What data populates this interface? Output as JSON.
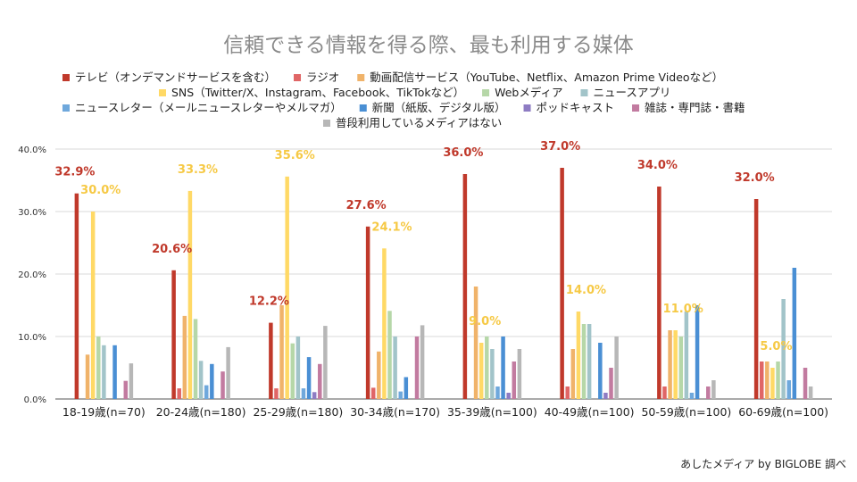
{
  "chart_data": {
    "type": "bar",
    "title": "信頼できる情報を得る際、最も利用する媒体",
    "source": "あしたメディア by BIGLOBE 調べ",
    "categories": [
      "18-19歳(n=70)",
      "20-24歳(n=180)",
      "25-29歳(n=180)",
      "30-34歳(n=170)",
      "35-39歳(n=100)",
      "40-49歳(n=100)",
      "50-59歳(n=100)",
      "60-69歳(n=100)"
    ],
    "ylim": [
      0,
      40
    ],
    "yticks": [
      "0.0%",
      "10.0%",
      "20.0%",
      "30.0%",
      "40.0%"
    ],
    "grid": true,
    "legend_position": "top",
    "series": [
      {
        "name": "テレビ（オンデマンドサービスを含む）",
        "color": "#c0392b",
        "values": [
          32.9,
          20.6,
          12.2,
          27.6,
          36.0,
          37.0,
          34.0,
          32.0
        ]
      },
      {
        "name": "ラジオ",
        "color": "#e06666",
        "values": [
          0,
          1.7,
          1.7,
          1.8,
          0,
          2.0,
          2.0,
          6.0
        ]
      },
      {
        "name": "動画配信サービス（YouTube、Netflix、Amazon Prime Videoなど）",
        "color": "#f0b36a",
        "values": [
          7.1,
          13.3,
          15.0,
          7.6,
          18.0,
          8.0,
          11.0,
          6.0
        ]
      },
      {
        "name": "SNS（Twitter/X、Instagram、Facebook、TikTokなど）",
        "color": "#ffd966",
        "values": [
          30.0,
          33.3,
          35.6,
          24.1,
          9.0,
          14.0,
          11.0,
          5.0
        ]
      },
      {
        "name": "Webメディア",
        "color": "#b6d7a8",
        "values": [
          10.0,
          12.8,
          8.9,
          14.1,
          10.0,
          12.0,
          10.0,
          6.0
        ]
      },
      {
        "name": "ニュースアプリ",
        "color": "#a2c4c9",
        "values": [
          8.6,
          6.1,
          10.0,
          10.0,
          8.0,
          12.0,
          14.0,
          16.0
        ]
      },
      {
        "name": "ニュースレター（メールニュースレターやメルマガ）",
        "color": "#6fa8dc",
        "values": [
          0,
          2.2,
          1.7,
          1.2,
          2.0,
          0,
          1.0,
          3.0
        ]
      },
      {
        "name": "新聞（紙版、デジタル版）",
        "color": "#4a8fd4",
        "values": [
          8.6,
          5.6,
          6.7,
          3.5,
          10.0,
          9.0,
          15.0,
          21.0
        ]
      },
      {
        "name": "ポッドキャスト",
        "color": "#8e7cc3",
        "values": [
          0,
          0,
          1.1,
          0,
          1.0,
          1.0,
          0,
          0
        ]
      },
      {
        "name": "雑誌・専門誌・書籍",
        "color": "#c27ba0",
        "values": [
          2.9,
          4.4,
          5.6,
          10.0,
          6.0,
          5.0,
          2.0,
          5.0
        ]
      },
      {
        "name": "普段利用しているメディアはない",
        "color": "#b7b7b7",
        "values": [
          5.7,
          8.3,
          11.7,
          11.8,
          8.0,
          10.0,
          3.0,
          2.0
        ]
      }
    ],
    "data_labels": [
      {
        "series": 0,
        "category": 0,
        "text": "32.9%",
        "color": "#c0392b"
      },
      {
        "series": 3,
        "category": 0,
        "text": "30.0%",
        "color": "#f6c945"
      },
      {
        "series": 0,
        "category": 1,
        "text": "20.6%",
        "color": "#c0392b"
      },
      {
        "series": 3,
        "category": 1,
        "text": "33.3%",
        "color": "#f6c945"
      },
      {
        "series": 0,
        "category": 2,
        "text": "12.2%",
        "color": "#c0392b"
      },
      {
        "series": 3,
        "category": 2,
        "text": "35.6%",
        "color": "#f6c945"
      },
      {
        "series": 0,
        "category": 3,
        "text": "27.6%",
        "color": "#c0392b"
      },
      {
        "series": 3,
        "category": 3,
        "text": "24.1%",
        "color": "#f6c945"
      },
      {
        "series": 0,
        "category": 4,
        "text": "36.0%",
        "color": "#c0392b"
      },
      {
        "series": 3,
        "category": 4,
        "text": "9.0%",
        "color": "#f6c945"
      },
      {
        "series": 0,
        "category": 5,
        "text": "37.0%",
        "color": "#c0392b"
      },
      {
        "series": 3,
        "category": 5,
        "text": "14.0%",
        "color": "#f6c945"
      },
      {
        "series": 0,
        "category": 6,
        "text": "34.0%",
        "color": "#c0392b"
      },
      {
        "series": 3,
        "category": 6,
        "text": "11.0%",
        "color": "#f6c945"
      },
      {
        "series": 0,
        "category": 7,
        "text": "32.0%",
        "color": "#c0392b"
      },
      {
        "series": 3,
        "category": 7,
        "text": "5.0%",
        "color": "#f6c945"
      }
    ]
  }
}
